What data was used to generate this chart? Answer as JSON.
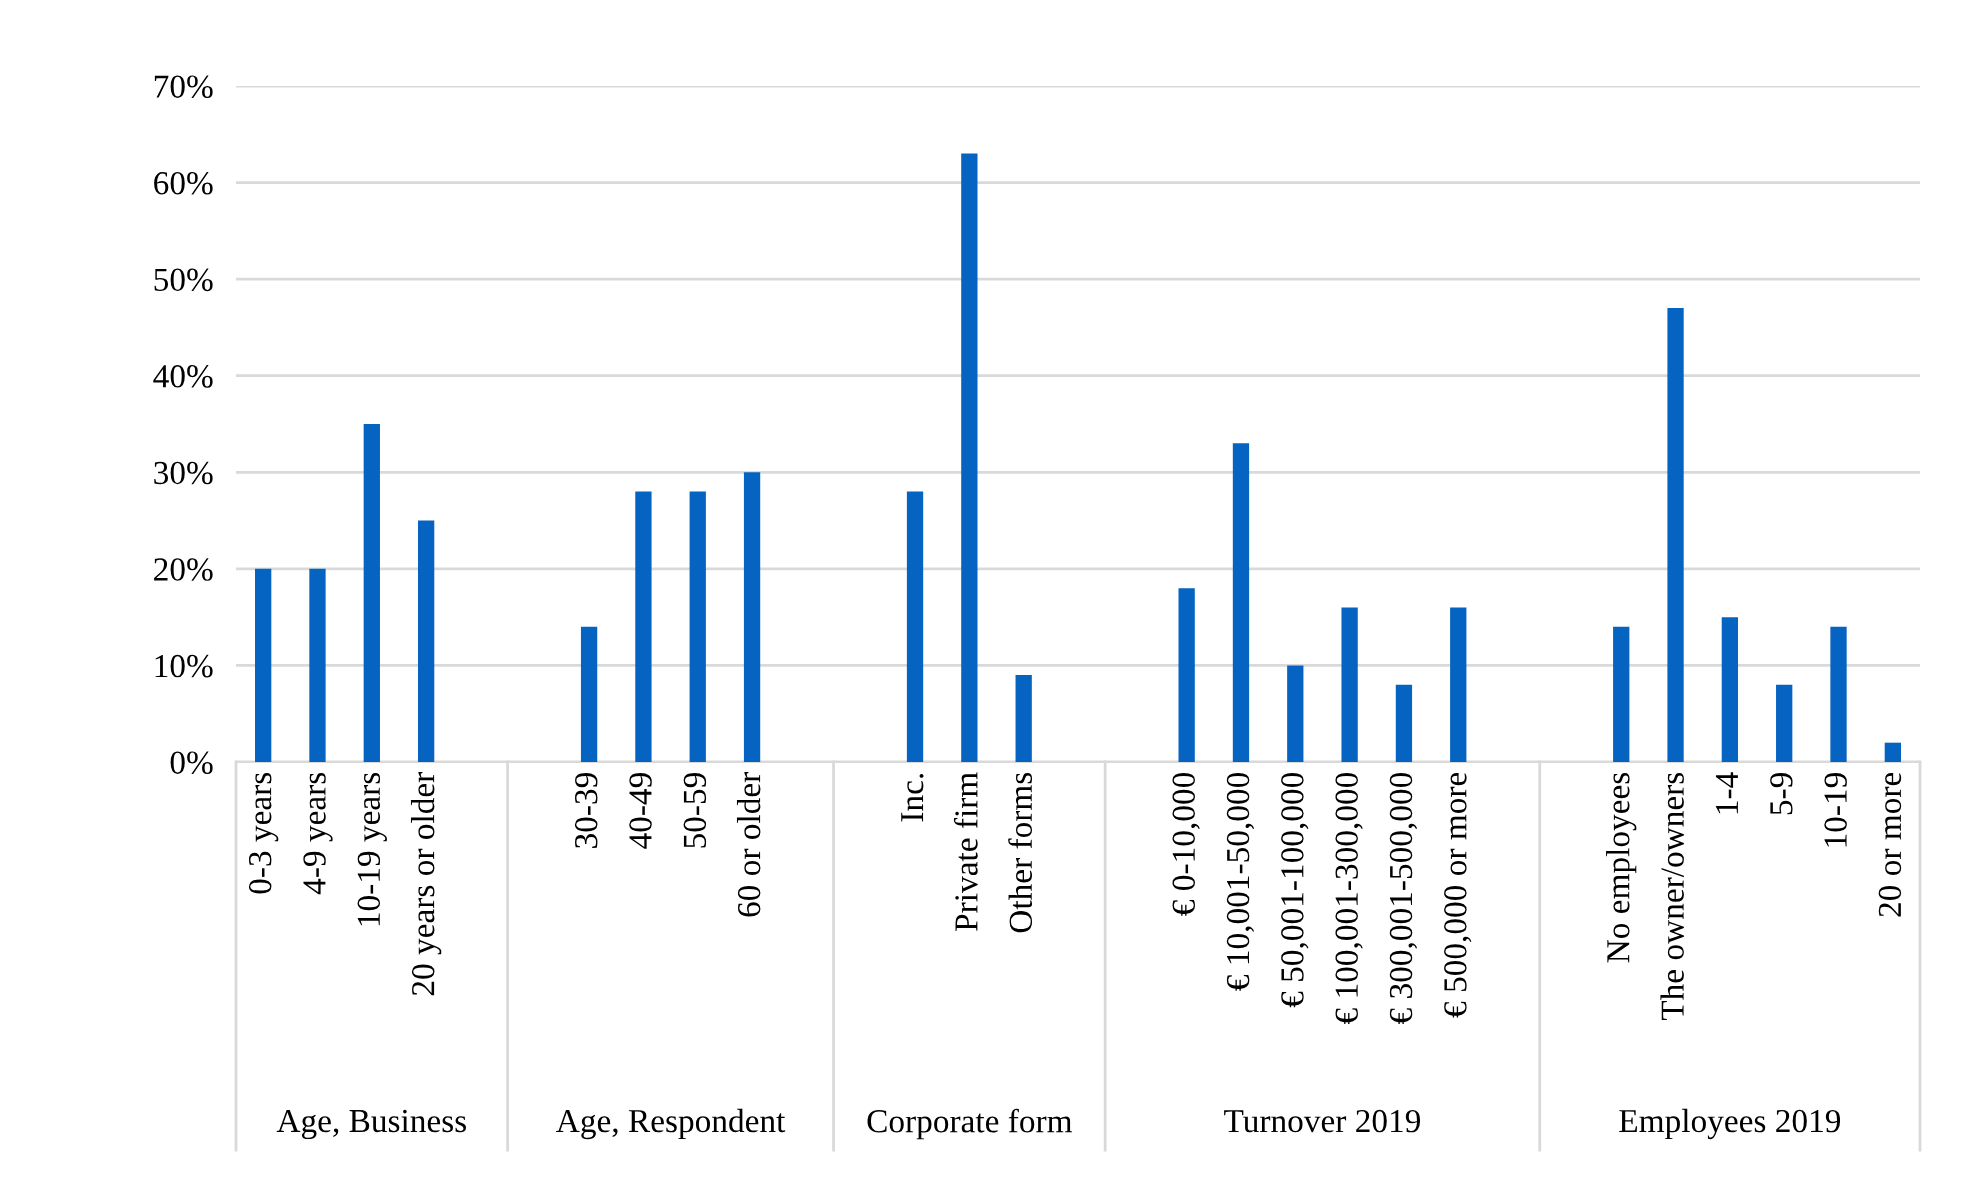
{
  "chart_data": {
    "type": "bar",
    "categories": [
      "0-3 years",
      "4-9 years",
      "10-19 years",
      "20 years or older",
      null,
      null,
      "30-39",
      "40-49",
      "50-59",
      "60 or older",
      null,
      null,
      "Inc.",
      "Private firm",
      "Other forms",
      null,
      null,
      "€ 0-10,000",
      "€ 10,001-50,000",
      "€ 50,001-100,000",
      "€ 100,001-300,000",
      "€ 300,001-500,000",
      "€ 500,000 or more",
      null,
      null,
      "No employees",
      "The owner/owners",
      "1-4",
      "5-9",
      "10-19",
      "20 or more"
    ],
    "values": [
      20,
      20,
      35,
      25,
      null,
      null,
      14,
      28,
      28,
      30,
      null,
      null,
      28,
      63,
      9,
      null,
      null,
      18,
      33,
      10,
      16,
      8,
      16,
      null,
      null,
      14,
      47,
      15,
      8,
      14,
      2
    ],
    "color": "#0563c1",
    "ylim": [
      0,
      70
    ],
    "yticks": [
      {
        "value": 0,
        "label": "0%"
      },
      {
        "value": 10,
        "label": "10%"
      },
      {
        "value": 20,
        "label": "20%"
      },
      {
        "value": 30,
        "label": "30%"
      },
      {
        "value": 40,
        "label": "40%"
      },
      {
        "value": 50,
        "label": "50%"
      },
      {
        "value": 60,
        "label": "60%"
      },
      {
        "value": 70,
        "label": "70%"
      }
    ],
    "grid": "y",
    "annotations": [
      "Age, Business",
      "Age, Respondent",
      "Corporate form",
      "Turnover 2019",
      "Employees 2019"
    ]
  }
}
